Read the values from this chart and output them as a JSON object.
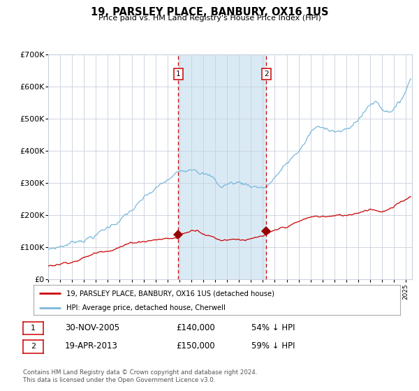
{
  "title": "19, PARSLEY PLACE, BANBURY, OX16 1US",
  "subtitle": "Price paid vs. HM Land Registry's House Price Index (HPI)",
  "legend_line1": "19, PARSLEY PLACE, BANBURY, OX16 1US (detached house)",
  "legend_line2": "HPI: Average price, detached house, Cherwell",
  "annotation1": {
    "label": "1",
    "date_str": "30-NOV-2005",
    "price": "£140,000",
    "note": "54% ↓ HPI"
  },
  "annotation2": {
    "label": "2",
    "date_str": "19-APR-2013",
    "price": "£150,000",
    "note": "59% ↓ HPI"
  },
  "footer": "Contains HM Land Registry data © Crown copyright and database right 2024.\nThis data is licensed under the Open Government Licence v3.0.",
  "hpi_color": "#7ab8d9",
  "price_color": "#cc0000",
  "marker_color": "#990000",
  "vline_color": "#cc0000",
  "shade_color": "#daeaf5",
  "grid_color": "#c8d0dc",
  "background_color": "#ffffff",
  "ylim": [
    0,
    700000
  ],
  "yticks": [
    0,
    100000,
    200000,
    300000,
    400000,
    500000,
    600000,
    700000
  ],
  "ytick_labels": [
    "£0",
    "£100K",
    "£200K",
    "£300K",
    "£400K",
    "£500K",
    "£600K",
    "£700K"
  ],
  "sale1_x": 2005.917,
  "sale2_x": 2013.3,
  "sale1_y": 140000,
  "sale2_y": 150000,
  "xmin": 1995.0,
  "xmax": 2025.5
}
